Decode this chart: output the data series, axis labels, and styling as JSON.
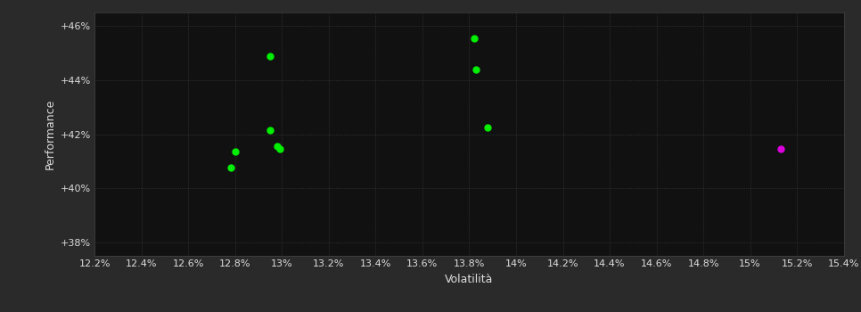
{
  "background_color": "#2a2a2a",
  "plot_bg_color": "#111111",
  "grid_color": "#444444",
  "text_color": "#dddddd",
  "xlabel": "Volatilità",
  "ylabel": "Performance",
  "xlim": [
    0.122,
    0.154
  ],
  "ylim": [
    0.375,
    0.465
  ],
  "yticks": [
    0.38,
    0.4,
    0.42,
    0.44,
    0.46
  ],
  "ytick_labels": [
    "+38%",
    "+40%",
    "+42%",
    "+44%",
    "+46%"
  ],
  "xticks": [
    0.122,
    0.124,
    0.126,
    0.128,
    0.13,
    0.132,
    0.134,
    0.136,
    0.138,
    0.14,
    0.142,
    0.144,
    0.146,
    0.148,
    0.15,
    0.152,
    0.154
  ],
  "xtick_labels": [
    "12.2%",
    "12.4%",
    "12.6%",
    "12.8%",
    "13%",
    "13.2%",
    "13.4%",
    "13.6%",
    "13.8%",
    "14%",
    "14.2%",
    "14.4%",
    "14.6%",
    "14.8%",
    "15%",
    "15.2%",
    "15.4%"
  ],
  "green_points": [
    [
      0.1295,
      0.449
    ],
    [
      0.1295,
      0.4215
    ],
    [
      0.1298,
      0.4155
    ],
    [
      0.1299,
      0.4145
    ],
    [
      0.128,
      0.4135
    ],
    [
      0.1278,
      0.4075
    ],
    [
      0.1382,
      0.4555
    ],
    [
      0.1383,
      0.444
    ],
    [
      0.1388,
      0.4225
    ]
  ],
  "magenta_point": [
    0.1513,
    0.4145
  ],
  "green_color": "#00ee00",
  "magenta_color": "#dd00dd",
  "marker_size": 25,
  "label_fontsize": 9,
  "tick_fontsize": 8
}
